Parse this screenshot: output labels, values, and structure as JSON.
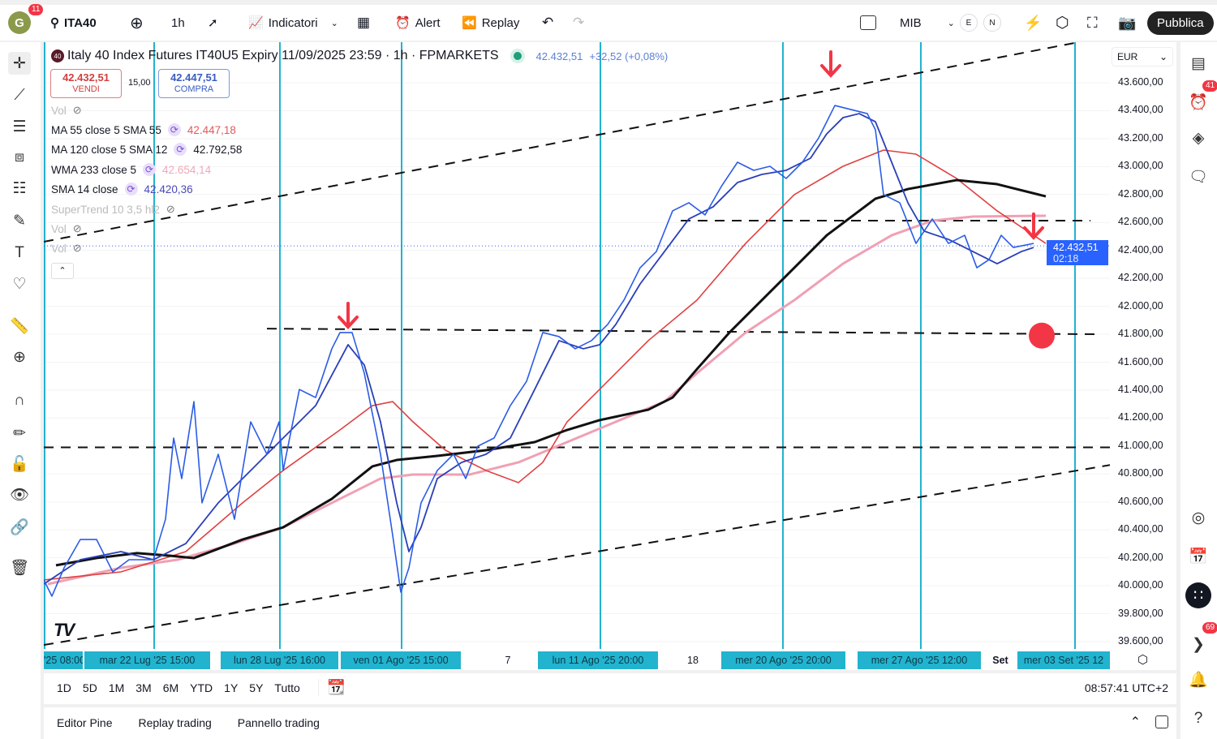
{
  "toolbar": {
    "avatar_letter": "G",
    "avatar_badge": "11",
    "symbol": "ITA40",
    "interval": "1h",
    "indicators": "Indicatori",
    "alert": "Alert",
    "replay": "Replay",
    "exchange": "MIB",
    "e": "E",
    "n": "N",
    "publish": "Pubblica"
  },
  "header": {
    "title": "Italy 40 Index Futures IT40U5 Expiry 11/09/2025 23:59 · 1h · FPMARKETS",
    "logo": "40",
    "last": "42.432,51",
    "change": "+32,52 (+0,08%)",
    "sell_price": "42.432,51",
    "sell_label": "VENDI",
    "spread": "15,00",
    "buy_price": "42.447,51",
    "buy_label": "COMPRA"
  },
  "legend": [
    {
      "name": "Vol",
      "value": "",
      "color": "#aaaaaa",
      "hidden": true
    },
    {
      "name": "MA 55 close 5 SMA 55",
      "value": "42.447,18",
      "color": "#e05a5a"
    },
    {
      "name": "MA 120 close 5 SMA 12",
      "value": "42.792,58",
      "color": "#131722"
    },
    {
      "name": "WMA 233 close 5",
      "value": "42.654,14",
      "color": "#f0a8b8"
    },
    {
      "name": "SMA 14 close",
      "value": "42.420,36",
      "color": "#4a48b8"
    },
    {
      "name": "SuperTrend 10 3,5 hl2",
      "value": "",
      "color": "#bbbbbb",
      "hidden": true
    },
    {
      "name": "Vol",
      "value": "",
      "color": "#bbbbbb",
      "hidden": true
    },
    {
      "name": "Vol",
      "value": "",
      "color": "#bbbbbb",
      "hidden": true
    }
  ],
  "price_axis": {
    "currency": "EUR",
    "labels": [
      "43.600,00",
      "43.400,00",
      "43.200,00",
      "43.000,00",
      "42.800,00",
      "42.600,00",
      "42.400,00",
      "42.200,00",
      "42.000,00",
      "41.800,00",
      "41.600,00",
      "41.400,00",
      "41.200,00",
      "41.000,00",
      "40.800,00",
      "40.600,00",
      "40.400,00",
      "40.200,00",
      "40.000,00",
      "39.800,00",
      "39.600,00"
    ],
    "current": "42.432,51",
    "countdown": "02:18"
  },
  "time_axis": [
    "'25  08:00",
    "mar 22 Lug '25   15:00",
    "lun 28 Lug '25   16:00",
    "ven 01 Ago '25   15:00",
    "7",
    "lun 11 Ago '25   20:00",
    "18",
    "mer 20 Ago '25   20:00",
    "mer 27 Ago '25   12:00",
    "Set",
    "mer 03 Set '25   12"
  ],
  "ranges": [
    "1D",
    "5D",
    "1M",
    "3M",
    "6M",
    "YTD",
    "1Y",
    "5Y",
    "Tutto"
  ],
  "clock": "08:57:41 UTC+2",
  "bottom_tabs": [
    "Editor Pine",
    "Replay trading",
    "Pannello trading"
  ],
  "right_badges": {
    "alerts": "41",
    "notifications": "69"
  },
  "colors": {
    "price": "#2b5ce6",
    "sma14": "#2a3fb8",
    "ma55": "#e04040",
    "ma120": "#111111",
    "wma": "#f0a0b4",
    "vline": "#22b3cf",
    "arrow": "#f23645"
  },
  "chart_data": {
    "type": "line",
    "price_range": [
      39600,
      43600
    ],
    "price": [
      [
        0,
        40041
      ],
      [
        2,
        39925
      ],
      [
        5,
        40128
      ],
      [
        9,
        40331
      ],
      [
        13,
        40331
      ],
      [
        17,
        40099
      ],
      [
        21,
        40186
      ],
      [
        27,
        40186
      ],
      [
        30,
        40476
      ],
      [
        32,
        41057
      ],
      [
        34,
        40767
      ],
      [
        37,
        41318
      ],
      [
        39,
        40593
      ],
      [
        43,
        40941
      ],
      [
        47,
        40476
      ],
      [
        51,
        41173
      ],
      [
        55,
        40941
      ],
      [
        58,
        41173
      ],
      [
        59,
        40825
      ],
      [
        63,
        41405
      ],
      [
        67,
        41347
      ],
      [
        71,
        41696
      ],
      [
        73,
        41812
      ],
      [
        76,
        41812
      ],
      [
        79,
        41521
      ],
      [
        83,
        40941
      ],
      [
        86,
        40360
      ],
      [
        88,
        39954
      ],
      [
        90,
        40128
      ],
      [
        93,
        40593
      ],
      [
        97,
        40825
      ],
      [
        101,
        40941
      ],
      [
        104,
        40767
      ],
      [
        107,
        40999
      ],
      [
        111,
        41057
      ],
      [
        115,
        41289
      ],
      [
        119,
        41463
      ],
      [
        123,
        41812
      ],
      [
        127,
        41783
      ],
      [
        131,
        41696
      ],
      [
        135,
        41754
      ],
      [
        139,
        41870
      ],
      [
        143,
        42044
      ],
      [
        147,
        42276
      ],
      [
        151,
        42392
      ],
      [
        155,
        42683
      ],
      [
        159,
        42741
      ],
      [
        163,
        42654
      ],
      [
        167,
        42857
      ],
      [
        171,
        43031
      ],
      [
        175,
        42973
      ],
      [
        179,
        43002
      ],
      [
        183,
        42915
      ],
      [
        187,
        43031
      ],
      [
        191,
        43205
      ],
      [
        195,
        43437
      ],
      [
        199,
        43408
      ],
      [
        203,
        43379
      ],
      [
        205,
        43263
      ],
      [
        207,
        42799
      ],
      [
        211,
        42741
      ],
      [
        215,
        42450
      ],
      [
        219,
        42625
      ],
      [
        223,
        42450
      ],
      [
        227,
        42508
      ],
      [
        230,
        42276
      ],
      [
        233,
        42334
      ],
      [
        236,
        42508
      ],
      [
        239,
        42421
      ],
      [
        244,
        42450
      ]
    ],
    "sma14": [
      [
        0,
        40012
      ],
      [
        9,
        40186
      ],
      [
        19,
        40244
      ],
      [
        27,
        40186
      ],
      [
        35,
        40302
      ],
      [
        43,
        40593
      ],
      [
        51,
        40825
      ],
      [
        59,
        41057
      ],
      [
        67,
        41289
      ],
      [
        75,
        41725
      ],
      [
        79,
        41580
      ],
      [
        83,
        41173
      ],
      [
        87,
        40593
      ],
      [
        90,
        40244
      ],
      [
        93,
        40418
      ],
      [
        97,
        40767
      ],
      [
        103,
        40883
      ],
      [
        109,
        40941
      ],
      [
        115,
        41057
      ],
      [
        121,
        41405
      ],
      [
        127,
        41754
      ],
      [
        133,
        41696
      ],
      [
        137,
        41725
      ],
      [
        141,
        41870
      ],
      [
        147,
        42160
      ],
      [
        153,
        42392
      ],
      [
        159,
        42625
      ],
      [
        165,
        42712
      ],
      [
        171,
        42886
      ],
      [
        177,
        42944
      ],
      [
        183,
        42973
      ],
      [
        189,
        43060
      ],
      [
        193,
        43234
      ],
      [
        197,
        43350
      ],
      [
        201,
        43379
      ],
      [
        205,
        43321
      ],
      [
        209,
        43031
      ],
      [
        213,
        42741
      ],
      [
        217,
        42538
      ],
      [
        223,
        42479
      ],
      [
        229,
        42392
      ],
      [
        235,
        42305
      ],
      [
        241,
        42392
      ],
      [
        244,
        42421
      ]
    ],
    "ma55": [
      [
        0,
        40041
      ],
      [
        19,
        40099
      ],
      [
        35,
        40244
      ],
      [
        49,
        40593
      ],
      [
        59,
        40825
      ],
      [
        73,
        41115
      ],
      [
        81,
        41289
      ],
      [
        86,
        41318
      ],
      [
        91,
        41173
      ],
      [
        99,
        40970
      ],
      [
        109,
        40825
      ],
      [
        117,
        40738
      ],
      [
        123,
        40883
      ],
      [
        129,
        41173
      ],
      [
        137,
        41405
      ],
      [
        149,
        41754
      ],
      [
        161,
        42044
      ],
      [
        173,
        42450
      ],
      [
        185,
        42799
      ],
      [
        197,
        43002
      ],
      [
        207,
        43118
      ],
      [
        215,
        43089
      ],
      [
        225,
        42915
      ],
      [
        235,
        42683
      ],
      [
        247,
        42450
      ]
    ],
    "ma120": [
      [
        3,
        40146
      ],
      [
        13,
        40198
      ],
      [
        23,
        40233
      ],
      [
        31,
        40215
      ],
      [
        37,
        40198
      ],
      [
        49,
        40331
      ],
      [
        59,
        40418
      ],
      [
        71,
        40622
      ],
      [
        81,
        40854
      ],
      [
        87,
        40900
      ],
      [
        97,
        40929
      ],
      [
        109,
        40970
      ],
      [
        121,
        41028
      ],
      [
        129,
        41115
      ],
      [
        137,
        41185
      ],
      [
        149,
        41260
      ],
      [
        155,
        41347
      ],
      [
        161,
        41550
      ],
      [
        169,
        41812
      ],
      [
        181,
        42160
      ],
      [
        193,
        42508
      ],
      [
        205,
        42770
      ],
      [
        213,
        42839
      ],
      [
        225,
        42903
      ],
      [
        235,
        42874
      ],
      [
        247,
        42787
      ]
    ],
    "wma233": [
      [
        1,
        40012
      ],
      [
        19,
        40128
      ],
      [
        33,
        40186
      ],
      [
        47,
        40302
      ],
      [
        59,
        40418
      ],
      [
        73,
        40622
      ],
      [
        83,
        40767
      ],
      [
        91,
        40796
      ],
      [
        105,
        40796
      ],
      [
        117,
        40883
      ],
      [
        129,
        41028
      ],
      [
        141,
        41173
      ],
      [
        153,
        41318
      ],
      [
        161,
        41521
      ],
      [
        173,
        41812
      ],
      [
        185,
        42044
      ],
      [
        197,
        42305
      ],
      [
        209,
        42508
      ],
      [
        219,
        42613
      ],
      [
        229,
        42642
      ],
      [
        247,
        42648
      ]
    ],
    "hlines": [
      [
        [
          157,
          42613
        ],
        [
          258,
          42613
        ]
      ],
      [
        [
          55,
          41840
        ],
        [
          260,
          41800
        ]
      ],
      [
        [
          0,
          40990
        ],
        [
          263,
          40990
        ]
      ]
    ],
    "channel": [
      [
        [
          0,
          42462
        ],
        [
          255,
          43890
        ]
      ],
      [
        [
          0,
          39576
        ],
        [
          263,
          40865
        ]
      ]
    ],
    "vlines": [
      0,
      27,
      58,
      88,
      137,
      182,
      216,
      254
    ],
    "arrows": [
      [
        75,
        41928
      ],
      [
        194,
        43728
      ],
      [
        244,
        42567
      ]
    ],
    "dot": [
      246,
      41790
    ],
    "current_price": 42432.51
  }
}
